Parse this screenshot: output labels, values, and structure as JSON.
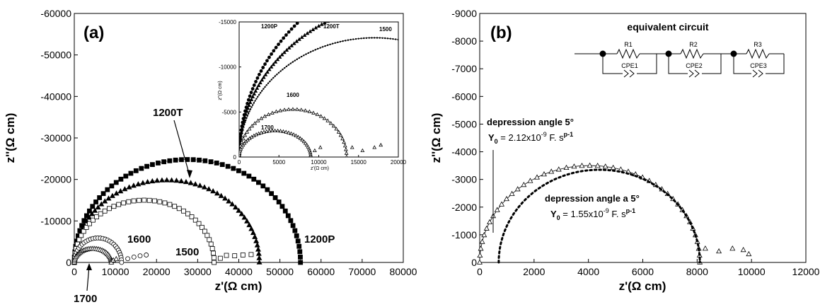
{
  "chart_data": [
    {
      "type": "scatter",
      "panel_label": "(a)",
      "xlabel": "z'(Ω cm)",
      "ylabel": "z''(Ω cm)",
      "xlim": [
        0,
        80000
      ],
      "ylim": [
        0,
        -60000
      ],
      "xticks": [
        "0",
        "10000",
        "20000",
        "30000",
        "40000",
        "50000",
        "60000",
        "70000",
        "80000"
      ],
      "yticks": [
        "0",
        "-10000",
        "-20000",
        "-30000",
        "-40000",
        "-50000",
        "-60000"
      ],
      "series": [
        {
          "name": "1200P",
          "marker": "filled-square",
          "R": 55000,
          "peak": 24800,
          "tail": []
        },
        {
          "name": "1200T",
          "marker": "filled-triangle",
          "R": 45000,
          "peak": 19800,
          "tail": []
        },
        {
          "name": "1500",
          "marker": "open-square",
          "R": 34000,
          "peak": 15000,
          "tail": [
            [
              35500,
              1000
            ],
            [
              37000,
              1700
            ],
            [
              39000,
              1600
            ],
            [
              41000,
              1800
            ],
            [
              43000,
              1900
            ]
          ]
        },
        {
          "name": "1600",
          "marker": "open-circle",
          "R": 11500,
          "peak": 5900,
          "tail": [
            [
              13000,
              900
            ],
            [
              14500,
              1300
            ],
            [
              16000,
              1600
            ],
            [
              17500,
              1800
            ]
          ]
        },
        {
          "name": "1700",
          "marker": "open-triangle",
          "R": 9000,
          "peak": 3300,
          "tail": [
            [
              9500,
              500
            ],
            [
              10200,
              800
            ]
          ]
        }
      ],
      "annotations": [
        "1200T",
        "1200P",
        "1600",
        "1500",
        "1700"
      ],
      "inset": {
        "xlabel": "z'(Ω cm)",
        "ylabel": "z''(Ω cm)",
        "xlim": [
          0,
          20000
        ],
        "ylim": [
          0,
          -17000
        ],
        "xticks": [
          "0",
          "5000",
          "10000",
          "15000",
          "20000"
        ],
        "yticks": [
          "0",
          "-5000",
          "-10000",
          "-15000"
        ],
        "labels": [
          "1200P",
          "1200T",
          "1500",
          "1600",
          "1700"
        ],
        "series": [
          {
            "name": "1200P",
            "marker": "filled-circle",
            "R": 55000,
            "peak": 24800
          },
          {
            "name": "1200T",
            "marker": "filled-triangle",
            "R": 45000,
            "peak": 19800
          },
          {
            "name": "1500",
            "marker": "small-dot",
            "R": 34000,
            "peak": 15000
          },
          {
            "name": "1600",
            "marker": "open-triangle",
            "R": 13500,
            "peak": 6000,
            "tail": [
              [
                14200,
                1200
              ],
              [
                15500,
                800
              ],
              [
                17000,
                1200
              ],
              [
                17800,
                1500
              ]
            ]
          },
          {
            "name": "1700",
            "marker": "open-triangle",
            "R": 9000,
            "peak": 3300,
            "tail": [
              [
                9500,
                800
              ],
              [
                10200,
                1200
              ]
            ]
          }
        ]
      }
    },
    {
      "type": "scatter",
      "panel_label": "(b)",
      "xlabel": "z'(Ω cm)",
      "ylabel": "z''(Ω cm)",
      "xlim": [
        0,
        12000
      ],
      "ylim": [
        0,
        -9000
      ],
      "xticks": [
        "0",
        "2000",
        "4000",
        "6000",
        "8000",
        "10000",
        "12000"
      ],
      "yticks": [
        "0",
        "-1000",
        "-2000",
        "-3000",
        "-4000",
        "-5000",
        "-6000",
        "-7000",
        "-8000",
        "-9000"
      ],
      "data": {
        "marker": "open-triangle",
        "R": 8100,
        "peak": 3500,
        "tail": [
          [
            8300,
            500
          ],
          [
            8800,
            400
          ],
          [
            9300,
            500
          ],
          [
            9700,
            450
          ],
          [
            9900,
            300
          ]
        ]
      },
      "fit": {
        "start": 700,
        "R": 8100,
        "peak": 3350
      },
      "circuit": {
        "title": "equivalent circuit",
        "elements": [
          "R1",
          "CPE1",
          "R2",
          "CPE2",
          "R3",
          "CPE3"
        ]
      },
      "annotation_1": {
        "line1": "depression angle  5°",
        "y0": "Y",
        "y0_sub": "0",
        "value": " = 2.12x10",
        "exp": "-9",
        "unit": " F. s",
        "unit_exp": "p-1"
      },
      "annotation_2": {
        "line1": "depression angle a 5°",
        "y0": "Y",
        "y0_sub": "0",
        "value": " = 1.55x10",
        "exp": "-9",
        "unit": " F. s",
        "unit_exp": "p-1"
      }
    }
  ]
}
